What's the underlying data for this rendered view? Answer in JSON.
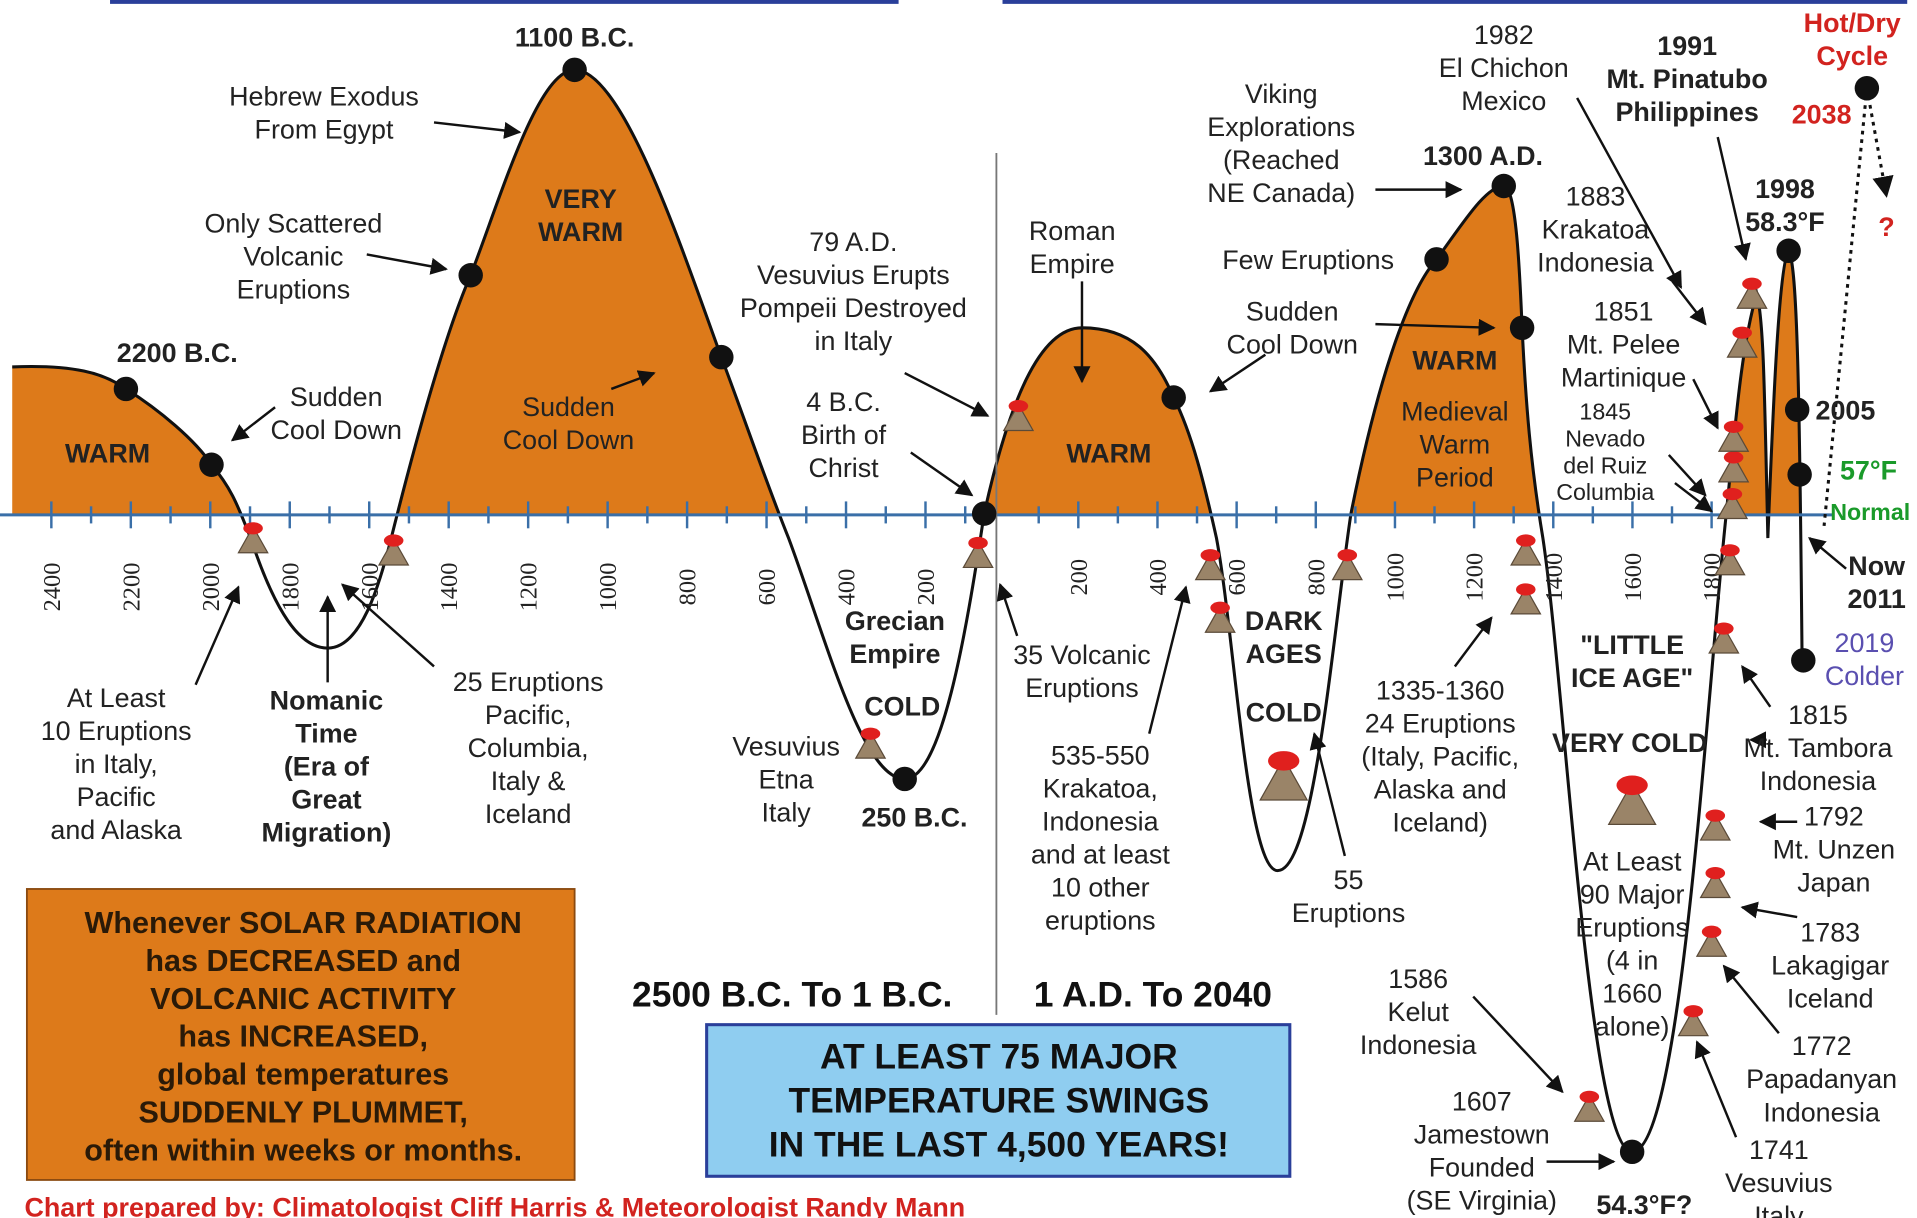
{
  "labels": {
    "t1100": [
      "1100 B.C."
    ],
    "hebrew": [
      "Hebrew Exodus",
      "From Egypt"
    ],
    "scattered": [
      "Only Scattered",
      "Volcanic",
      "Eruptions"
    ],
    "very_warm": [
      "VERY",
      "WARM"
    ],
    "t2200": [
      "2200 B.C."
    ],
    "warm1": [
      "WARM"
    ],
    "sudden1": [
      "Sudden",
      "Cool Down"
    ],
    "sudden2": [
      "Sudden",
      "Cool Down"
    ],
    "vesuvius79": [
      "79 A.D.",
      "Vesuvius Erupts",
      "Pompeii Destroyed",
      "in Italy"
    ],
    "birth": [
      "4 B.C.",
      "Birth of",
      "Christ"
    ],
    "roman": [
      "Roman",
      "Empire"
    ],
    "warm2": [
      "WARM"
    ],
    "viking": [
      "Viking",
      "Explorations",
      "(Reached",
      "NE Canada)"
    ],
    "few": [
      "Few Eruptions"
    ],
    "sudden3": [
      "Sudden",
      "Cool Down"
    ],
    "t1300": [
      "1300 A.D."
    ],
    "warm3": [
      "WARM"
    ],
    "medieval": [
      "Medieval",
      "Warm",
      "Period"
    ],
    "t1982": [
      "1982",
      "El Chichon",
      "Mexico"
    ],
    "t1991": [
      "1991",
      "Mt. Pinatubo",
      "Philippines"
    ],
    "hotdry": [
      "Hot/Dry",
      "Cycle"
    ],
    "t2038": [
      "2038"
    ],
    "q": [
      "?"
    ],
    "t1998": [
      "1998",
      "58.3°F"
    ],
    "t1883": [
      "1883",
      "Krakatoa",
      "Indonesia"
    ],
    "t1851": [
      "1851",
      "Mt. Pelee",
      "Martinique"
    ],
    "t1845": [
      "1845",
      "Nevado",
      "del Ruiz",
      "Columbia"
    ],
    "t2005": [
      "2005"
    ],
    "t57": [
      "57°F"
    ],
    "normal": [
      "Normal"
    ],
    "now": [
      "Now",
      "2011"
    ],
    "t2019": [
      "2019",
      "Colder"
    ],
    "grecian": [
      "Grecian",
      "Empire"
    ],
    "cold1": [
      "COLD"
    ],
    "vesuvius_etna": [
      "Vesuvius",
      "Etna",
      "Italy"
    ],
    "t250": [
      "250 B.C."
    ],
    "at_least10": [
      "At Least",
      "10 Eruptions",
      "in Italy,",
      "Pacific",
      "and Alaska"
    ],
    "nomanic": [
      "Nomanic",
      "Time",
      "(Era of",
      "Great",
      "Migration)"
    ],
    "e25": [
      "25 Eruptions",
      "Pacific,",
      "Columbia,",
      "Italy &",
      "Iceland"
    ],
    "e35": [
      "35 Volcanic",
      "Eruptions"
    ],
    "dark": [
      "DARK",
      "AGES"
    ],
    "cold2": [
      "COLD"
    ],
    "e535": [
      "535-550",
      "Krakatoa,",
      "Indonesia",
      "and at least",
      "10 other",
      "eruptions"
    ],
    "e55": [
      "55",
      "Eruptions"
    ],
    "e1335": [
      "1335-1360",
      "24 Eruptions",
      "(Italy, Pacific,",
      "Alaska and",
      "Iceland)"
    ],
    "lia": [
      "\"LITTLE",
      "ICE AGE\""
    ],
    "very_cold": [
      "VERY COLD"
    ],
    "at90": [
      "At Least",
      "90 Major",
      "Eruptions",
      "(4 in",
      "1660",
      "alone)"
    ],
    "t1815": [
      "1815",
      "Mt. Tambora",
      "Indonesia"
    ],
    "t1792": [
      "1792",
      "Mt. Unzen",
      "Japan"
    ],
    "t1783": [
      "1783",
      "Lakagigar",
      "Iceland"
    ],
    "t1772": [
      "1772",
      "Papadanyan",
      "Indonesia"
    ],
    "t1741": [
      "1741",
      "Vesuvius",
      "Italy"
    ],
    "t1586": [
      "1586",
      "Kelut",
      "Indonesia"
    ],
    "t1607": [
      "1607",
      "Jamestown",
      "Founded",
      "(SE Virginia)"
    ],
    "t543": [
      "54.3°F?"
    ],
    "period1": [
      "2500 B.C. To 1 B.C."
    ],
    "period2": [
      "1 A.D. To 2040"
    ],
    "box1": [
      "Whenever SOLAR RADIATION",
      "has DECREASED and",
      "VOLCANIC ACTIVITY",
      "has INCREASED,",
      "global temperatures",
      "SUDDENLY PLUMMET,",
      "often within weeks or months."
    ],
    "box2": [
      "AT LEAST 75 MAJOR",
      "TEMPERATURE SWINGS",
      "IN THE LAST 4,500 YEARS!"
    ],
    "credit": [
      "Chart prepared by: Climatologist Cliff Harris & Meteorologist Randy Mann"
    ]
  },
  "axis": {
    "bc_ticks": [
      "2400",
      "2200",
      "2000",
      "1800",
      "1600",
      "1400",
      "1200",
      "1000",
      "800",
      "600",
      "400",
      "200"
    ],
    "ad_ticks": [
      "200",
      "400",
      "600",
      "800",
      "1000",
      "1200",
      "1400",
      "1600",
      "1800"
    ]
  }
}
